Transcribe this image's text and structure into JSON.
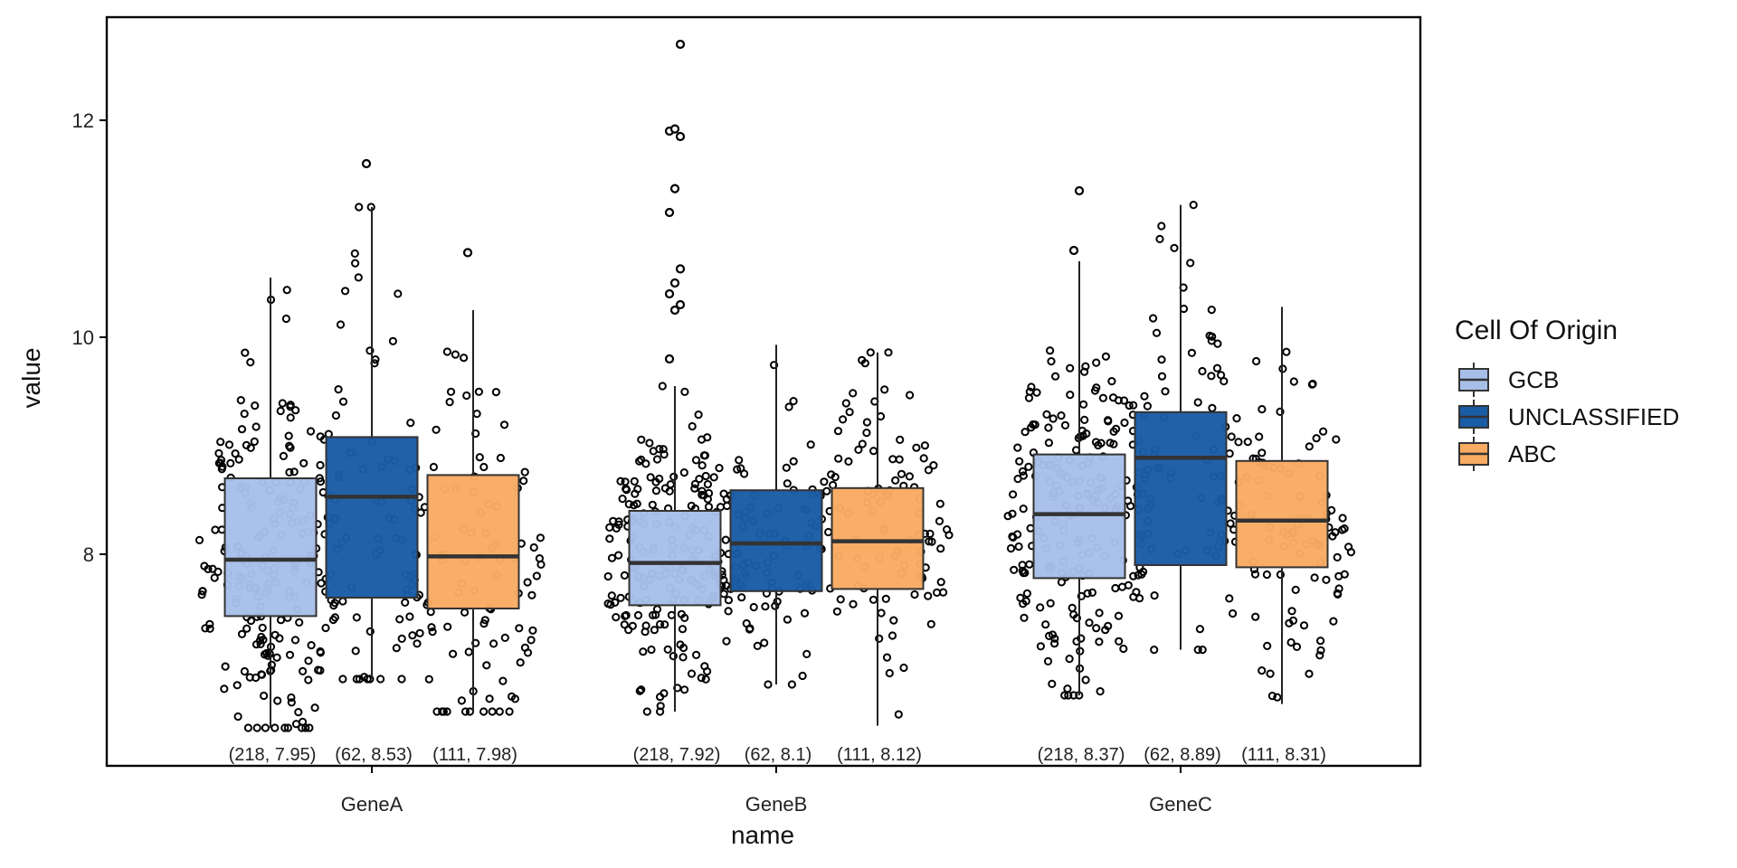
{
  "chart_data": {
    "type": "box",
    "xlabel": "name",
    "ylabel": "value",
    "categories": [
      "GeneA",
      "GeneB",
      "GeneC"
    ],
    "ylim": [
      6.05,
      12.95
    ],
    "yticks": [
      8,
      10,
      12
    ],
    "grid": false,
    "legend": {
      "title": "Cell Of Origin",
      "placement": "right",
      "entries": [
        {
          "name": "GCB",
          "color": "#a7bfe8"
        },
        {
          "name": "UNCLASSIFIED",
          "color": "#1a5ca5"
        },
        {
          "name": "ABC",
          "color": "#f9ab62"
        }
      ]
    },
    "groups": [
      "GCB",
      "UNCLASSIFIED",
      "ABC"
    ],
    "boxes": [
      {
        "category": "GeneA",
        "group": "GCB",
        "n": 218,
        "median": 7.95,
        "q1": 7.43,
        "q3": 8.7,
        "whisker_low": 6.4,
        "whisker_high": 10.55,
        "annotation": "(218, 7.95)"
      },
      {
        "category": "GeneA",
        "group": "UNCLASSIFIED",
        "n": 62,
        "median": 8.53,
        "q1": 7.6,
        "q3": 9.08,
        "whisker_low": 6.85,
        "whisker_high": 11.2,
        "annotation": "(62, 8.53)"
      },
      {
        "category": "GeneA",
        "group": "ABC",
        "n": 111,
        "median": 7.98,
        "q1": 7.5,
        "q3": 8.73,
        "whisker_low": 6.55,
        "whisker_high": 10.25,
        "annotation": "(111, 7.98)"
      },
      {
        "category": "GeneB",
        "group": "GCB",
        "n": 218,
        "median": 7.92,
        "q1": 7.53,
        "q3": 8.4,
        "whisker_low": 6.55,
        "whisker_high": 9.55,
        "annotation": "(218, 7.92)"
      },
      {
        "category": "GeneB",
        "group": "UNCLASSIFIED",
        "n": 62,
        "median": 8.1,
        "q1": 7.66,
        "q3": 8.59,
        "whisker_low": 6.8,
        "whisker_high": 9.93,
        "annotation": "(62, 8.1)"
      },
      {
        "category": "GeneB",
        "group": "ABC",
        "n": 111,
        "median": 8.12,
        "q1": 7.68,
        "q3": 8.61,
        "whisker_low": 6.42,
        "whisker_high": 9.86,
        "annotation": "(111, 8.12)"
      },
      {
        "category": "GeneC",
        "group": "GCB",
        "n": 218,
        "median": 8.37,
        "q1": 7.78,
        "q3": 8.92,
        "whisker_low": 6.7,
        "whisker_high": 10.7,
        "annotation": "(218, 8.37)"
      },
      {
        "category": "GeneC",
        "group": "UNCLASSIFIED",
        "n": 62,
        "median": 8.89,
        "q1": 7.9,
        "q3": 9.31,
        "whisker_low": 7.12,
        "whisker_high": 11.22,
        "annotation": "(62, 8.89)"
      },
      {
        "category": "GeneC",
        "group": "ABC",
        "n": 111,
        "median": 8.31,
        "q1": 7.88,
        "q3": 8.86,
        "whisker_low": 6.62,
        "whisker_high": 10.28,
        "annotation": "(111, 8.31)"
      }
    ],
    "outliers": [
      {
        "category": "GeneA",
        "group": "UNCLASSIFIED",
        "values": [
          11.6
        ]
      },
      {
        "category": "GeneA",
        "group": "ABC",
        "values": [
          10.78
        ]
      },
      {
        "category": "GeneB",
        "group": "GCB",
        "values": [
          9.8,
          10.25,
          10.3,
          10.4,
          10.5,
          10.63,
          11.15,
          11.37,
          11.85,
          11.9,
          11.92,
          12.7
        ]
      },
      {
        "category": "GeneC",
        "group": "GCB",
        "values": [
          10.8,
          11.35
        ]
      }
    ]
  }
}
